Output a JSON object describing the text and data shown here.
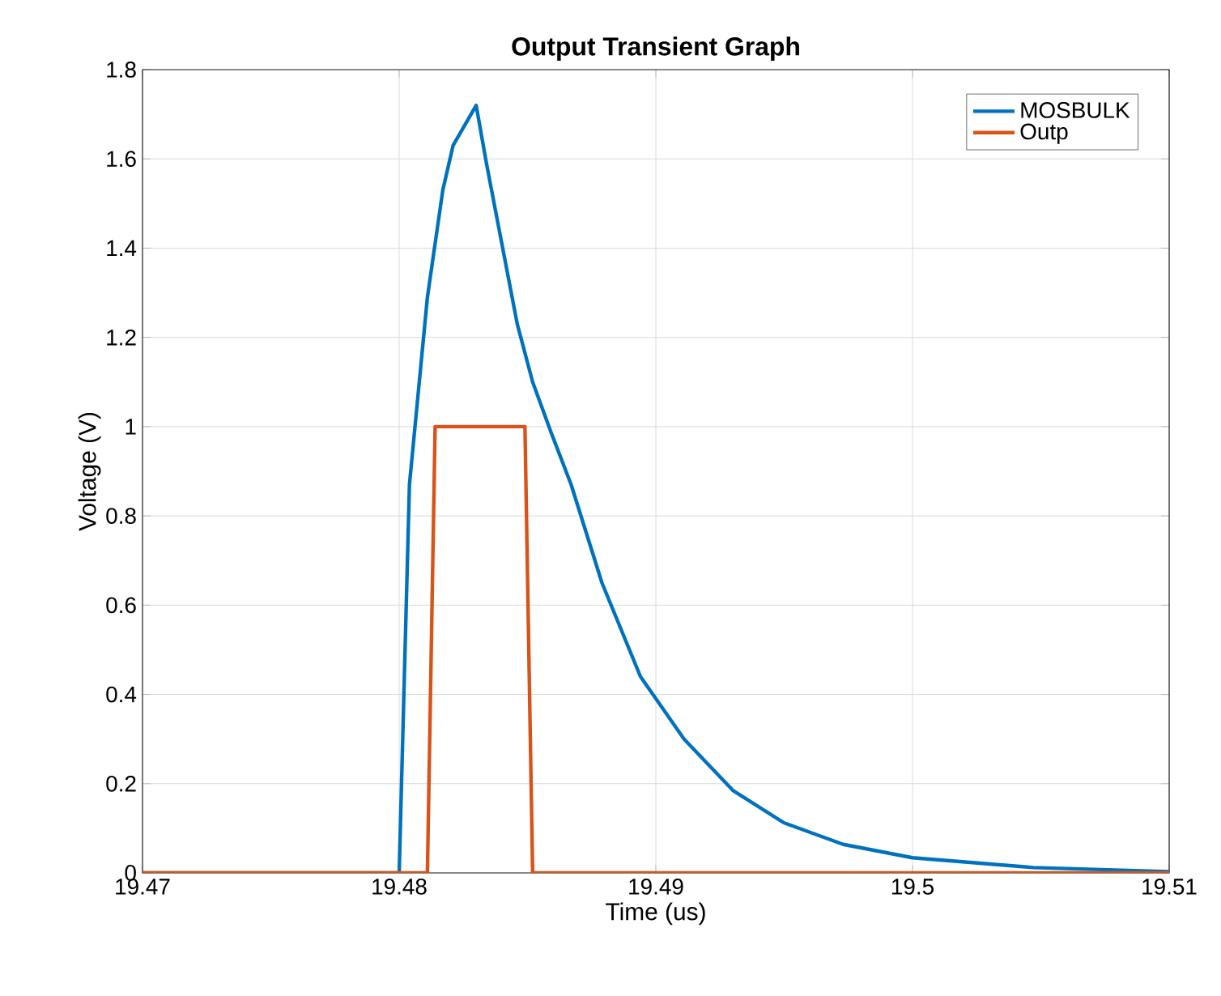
{
  "chart_data": {
    "type": "line",
    "title": "Output Transient Graph",
    "xlabel": "Time (us)",
    "ylabel": "Voltage (V)",
    "xlim": [
      19.47,
      19.51
    ],
    "xticks": [
      19.47,
      19.48,
      19.49,
      19.5,
      19.51
    ],
    "ylim": [
      0,
      1.8
    ],
    "yticks": [
      0,
      0.2,
      0.4,
      0.6,
      0.8,
      1,
      1.2,
      1.4,
      1.6,
      1.8
    ],
    "grid": true,
    "legend": "top right",
    "marker": "none",
    "line_style": "solid",
    "series": [
      {
        "name": "MOSBULK",
        "color": "#0072bd",
        "x": [
          19.47,
          19.48,
          19.4804,
          19.4811,
          19.4817,
          19.4821,
          19.483,
          19.4834,
          19.484,
          19.4846,
          19.4852,
          19.4859,
          19.4867,
          19.4879,
          19.4894,
          19.4911,
          19.493,
          19.495,
          19.4973,
          19.5,
          19.5047,
          19.51
        ],
        "values": [
          0,
          0,
          0.87,
          1.29,
          1.53,
          1.63,
          1.72,
          1.59,
          1.41,
          1.23,
          1.1,
          0.99,
          0.87,
          0.65,
          0.44,
          0.3,
          0.185,
          0.112,
          0.064,
          0.034,
          0.012,
          0.003
        ]
      },
      {
        "name": "Outp",
        "color": "#d95319",
        "x": [
          19.47,
          19.4811,
          19.4814,
          19.4849,
          19.4852,
          19.51
        ],
        "values": [
          0,
          0,
          1,
          1,
          0,
          0
        ]
      }
    ]
  }
}
